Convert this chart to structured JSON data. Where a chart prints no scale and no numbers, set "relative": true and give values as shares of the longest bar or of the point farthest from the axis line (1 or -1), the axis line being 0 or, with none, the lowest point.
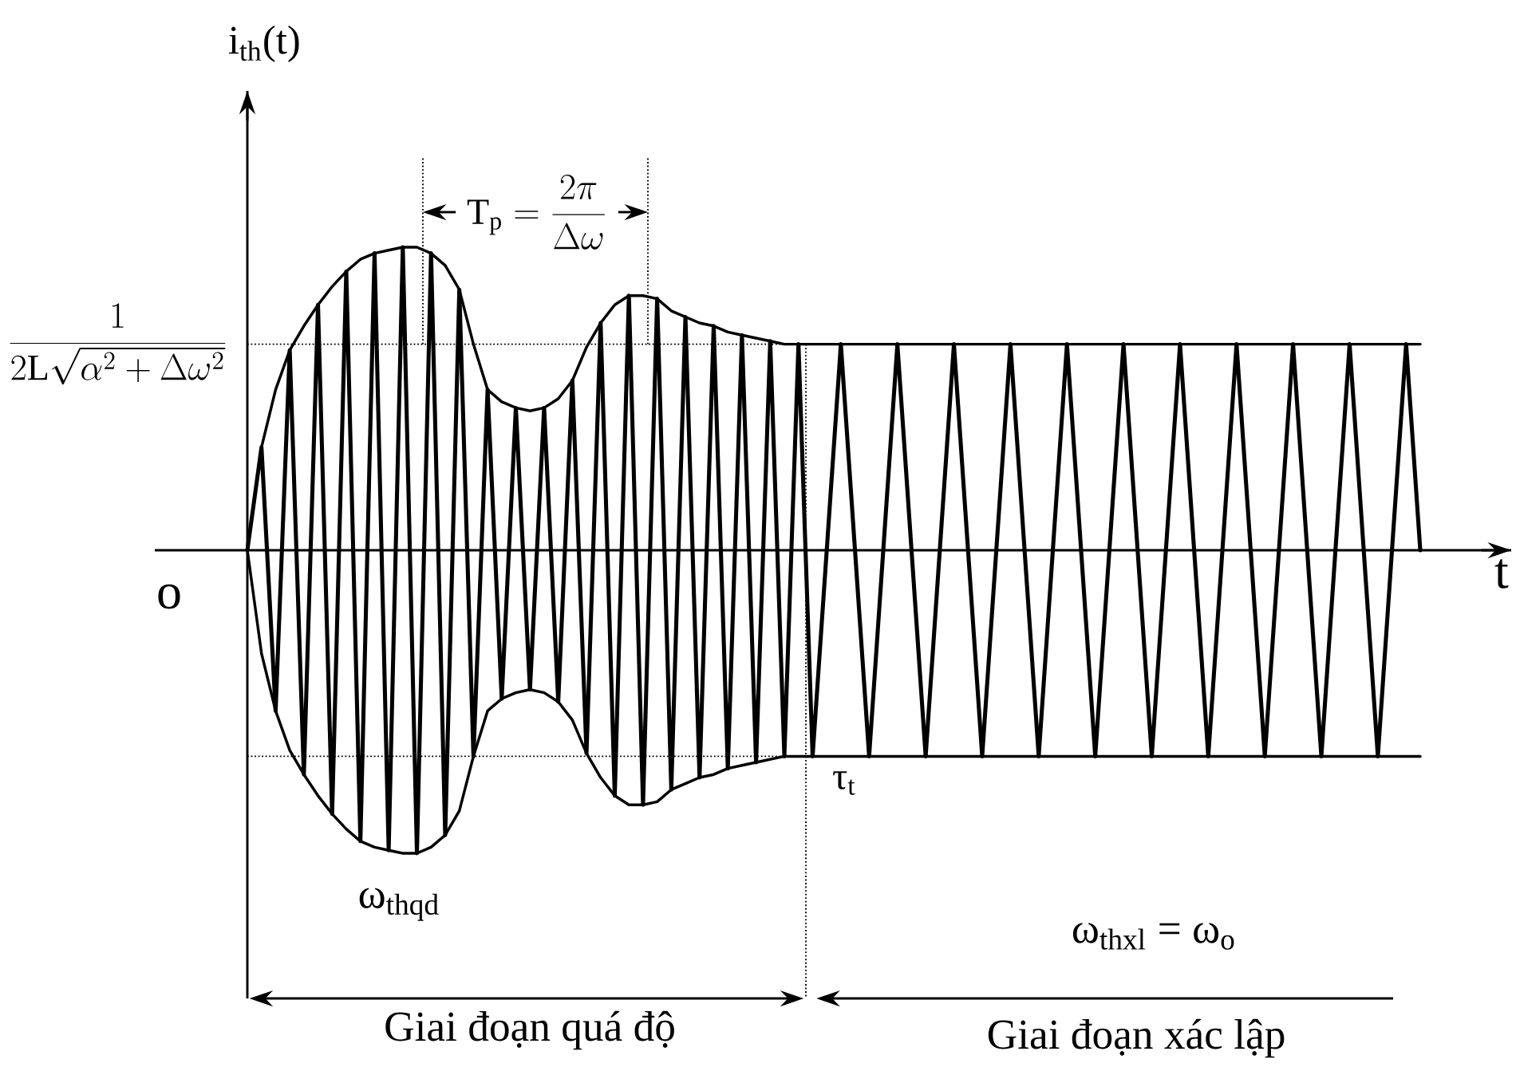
{
  "chart_data": {
    "type": "line",
    "relative": true,
    "xlabel": "t",
    "ylabel": "i$_{th}$(t)",
    "categories": [
      null,
      null,
      null,
      null,
      null,
      null,
      null,
      null,
      null,
      null,
      null,
      null,
      null,
      null,
      null,
      null,
      null,
      null,
      null,
      null,
      null,
      null,
      null,
      null,
      null,
      null,
      null,
      null,
      null,
      null,
      null,
      null,
      null,
      null,
      null,
      null,
      null,
      null,
      null,
      null,
      null,
      null,
      null,
      null,
      null,
      null,
      null,
      null,
      null,
      null,
      null,
      null,
      null,
      null,
      null,
      null,
      null,
      null,
      null,
      null,
      null,
      null,
      null,
      null,
      null,
      null,
      null,
      null,
      null,
      null,
      null,
      null,
      null,
      null,
      null,
      null,
      null,
      null,
      null,
      null,
      null,
      null,
      null,
      null
    ],
    "series": [
      {
        "color": "#000000",
        "values": [
          0,
          0.34,
          -0.53,
          0.66,
          -0.74,
          0.81,
          -0.87,
          0.92,
          -0.96,
          0.98,
          -0.99,
          1,
          -1,
          0.98,
          -0.94,
          0.86,
          -0.68,
          0.53,
          -0.49,
          0.47,
          -0.46,
          0.47,
          -0.5,
          0.56,
          -0.67,
          0.75,
          -0.81,
          0.84,
          -0.84,
          0.83,
          -0.79,
          0.77,
          -0.75,
          0.74,
          -0.72,
          0.71,
          -0.7,
          0.69,
          -0.68,
          0.68,
          -0.68,
          0,
          0.68,
          0,
          -0.68,
          0,
          0.68,
          0,
          -0.68,
          0,
          0.68,
          0,
          -0.68,
          0,
          0.68,
          0,
          -0.68,
          0,
          0.68,
          0,
          -0.68,
          0,
          0.68,
          0,
          -0.68,
          0,
          0.68,
          0,
          -0.68,
          0,
          0.68,
          0,
          -0.68,
          0,
          0.68,
          0,
          -0.68,
          0,
          0.68,
          0,
          -0.68,
          0,
          0.68,
          0
        ]
      },
      {
        "color": "#000000",
        "values": [
          null,
          0.34,
          0.53,
          0.66,
          0.74,
          0.81,
          0.87,
          0.92,
          0.96,
          0.98,
          0.99,
          1,
          1,
          0.98,
          0.94,
          0.86,
          0.68,
          0.53,
          0.49,
          0.47,
          0.46,
          0.47,
          0.5,
          0.56,
          0.67,
          0.75,
          0.81,
          0.84,
          0.84,
          0.83,
          0.79,
          0.77,
          0.75,
          0.74,
          0.72,
          0.71,
          0.7,
          0.69,
          0.68,
          0.68,
          0.68,
          0.68,
          0.68,
          0.68,
          0.68,
          0.68,
          0.68,
          0.68,
          0.68,
          0.68,
          0.68,
          0.68,
          0.68,
          0.68,
          0.68,
          0.68,
          0.68,
          0.68,
          0.68,
          0.68,
          0.68,
          0.68,
          0.68,
          0.68,
          0.68,
          0.68,
          0.68,
          0.68,
          0.68,
          0.68,
          0.68,
          0.68,
          0.68,
          0.68,
          0.68,
          0.68,
          0.68,
          0.68,
          0.68,
          0.68,
          0.68,
          0.68,
          0.68,
          0.68
        ]
      },
      {
        "color": "#000000",
        "values": [
          0,
          -0.34,
          -0.53,
          -0.66,
          -0.74,
          -0.81,
          -0.87,
          -0.92,
          -0.96,
          -0.98,
          -0.99,
          -1,
          -1,
          -0.98,
          -0.94,
          -0.86,
          -0.68,
          -0.53,
          -0.49,
          -0.47,
          -0.46,
          -0.47,
          -0.5,
          -0.56,
          -0.67,
          -0.75,
          -0.81,
          -0.84,
          -0.84,
          -0.83,
          -0.79,
          -0.77,
          -0.75,
          -0.74,
          -0.72,
          -0.71,
          -0.7,
          -0.69,
          -0.68,
          -0.68,
          -0.68,
          -0.68,
          -0.68,
          -0.68,
          -0.68,
          -0.68,
          -0.68,
          -0.68,
          -0.68,
          -0.68,
          -0.68,
          -0.68,
          -0.68,
          -0.68,
          -0.68,
          -0.68,
          -0.68,
          -0.68,
          -0.68,
          -0.68,
          -0.68,
          -0.68,
          -0.68,
          -0.68,
          -0.68,
          -0.68,
          -0.68,
          -0.68,
          -0.68,
          -0.68,
          -0.68,
          -0.68,
          -0.68,
          -0.68,
          -0.68,
          -0.68,
          -0.68,
          -0.68,
          -0.68,
          -0.68,
          -0.68,
          -0.68,
          -0.68,
          -0.68
        ]
      }
    ],
    "ref_lines": [
      {
        "axis": "y",
        "value": 0.68,
        "label": "\\frac{1}{2\\mathrm{L}\\sqrt{\\alpha^{2}+\\Delta\\omega^{2}}}",
        "line_style": "dotted"
      },
      {
        "axis": "y",
        "value": -0.68,
        "line_style": "dotted"
      }
    ],
    "annotations": [
      "\\mathrm{T}_{\\mathrm{p}} = \\frac{2\\pi}{\\Delta\\omega}",
      "o",
      "τ$_{t}$",
      "ω$_{thqd}$",
      "ω$_{thxl}$ = ω$_{o}$",
      "Giai đoạn quá độ",
      "Giai đoạn xác lập"
    ],
    "marker": "none",
    "line_style": "solid"
  }
}
